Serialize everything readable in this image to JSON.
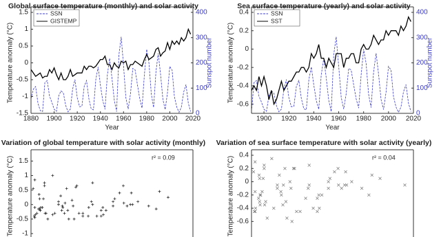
{
  "chart_data": [
    {
      "type": "line",
      "title": "Global surface temperature (monthly) and solar activity",
      "xlabel": "Year",
      "ylabel": "Temperature anomaly (°C)",
      "y2label": "Sunspot number",
      "legend": "upper left",
      "xlim": [
        1880,
        2020
      ],
      "xticks": [
        1880,
        1900,
        1920,
        1940,
        1960,
        1980,
        2000,
        2020
      ],
      "ylim": [
        -1.5,
        1.5
      ],
      "yticks": [
        -1.5,
        -1,
        -0.5,
        0,
        0.5,
        1,
        1.5
      ],
      "y2lim": [
        0,
        400
      ],
      "y2ticks": [
        0,
        100,
        200,
        300,
        400
      ],
      "y2color": "#3a3ac8",
      "x": [
        1880,
        1882,
        1884,
        1886,
        1888,
        1890,
        1892,
        1894,
        1896,
        1898,
        1900,
        1902,
        1904,
        1906,
        1908,
        1910,
        1912,
        1914,
        1916,
        1918,
        1920,
        1922,
        1924,
        1926,
        1928,
        1930,
        1932,
        1934,
        1936,
        1938,
        1940,
        1942,
        1944,
        1946,
        1948,
        1950,
        1952,
        1954,
        1956,
        1958,
        1960,
        1962,
        1964,
        1966,
        1968,
        1970,
        1972,
        1974,
        1976,
        1978,
        1980,
        1982,
        1984,
        1986,
        1988,
        1990,
        1992,
        1994,
        1996,
        1998,
        2000,
        2002,
        2004,
        2006,
        2008,
        2010,
        2012,
        2014,
        2016,
        2018
      ],
      "series": [
        {
          "name": "SSN",
          "color": "#3a3ac8",
          "axis": "y2",
          "linestyle": "dashed",
          "values": [
            57,
            96,
            106,
            40,
            11,
            7,
            122,
            130,
            68,
            44,
            16,
            8,
            70,
            89,
            80,
            31,
            6,
            17,
            96,
            134,
            62,
            26,
            28,
            107,
            130,
            59,
            18,
            14,
            133,
            184,
            112,
            51,
            16,
            152,
            218,
            139,
            51,
            7,
            232,
            303,
            188,
            63,
            17,
            78,
            178,
            172,
            114,
            58,
            21,
            152,
            254,
            198,
            76,
            23,
            164,
            238,
            155,
            55,
            15,
            83,
            186,
            171,
            66,
            25,
            4,
            25,
            85,
            114,
            40,
            7
          ]
        },
        {
          "name": "GISTEMP",
          "color": "#000000",
          "linestyle": "solid",
          "values": [
            -0.2,
            -0.3,
            -0.4,
            -0.35,
            -0.3,
            -0.45,
            -0.4,
            -0.4,
            -0.2,
            -0.3,
            -0.15,
            -0.35,
            -0.5,
            -0.3,
            -0.5,
            -0.5,
            -0.4,
            -0.2,
            -0.4,
            -0.35,
            -0.3,
            -0.3,
            -0.3,
            -0.1,
            -0.2,
            -0.1,
            -0.1,
            -0.15,
            -0.1,
            0.0,
            0.1,
            0.1,
            0.2,
            -0.05,
            -0.05,
            -0.2,
            0.0,
            -0.1,
            -0.15,
            0.05,
            0.0,
            0.05,
            -0.2,
            -0.05,
            -0.05,
            0.05,
            0.0,
            -0.05,
            -0.1,
            0.1,
            0.25,
            0.1,
            0.15,
            0.2,
            0.4,
            0.45,
            0.2,
            0.3,
            0.35,
            0.6,
            0.4,
            0.65,
            0.55,
            0.65,
            0.55,
            0.75,
            0.65,
            0.75,
            1.0,
            0.85
          ]
        }
      ]
    },
    {
      "type": "line",
      "title": "Sea surface temperature (yearly) and solar activity",
      "xlabel": "Year",
      "ylabel": "Temperature anomaly (°C)",
      "y2label": "Sunspot number",
      "legend": "upper left",
      "xlim": [
        1890,
        2020
      ],
      "xticks": [
        1900,
        1920,
        1940,
        1960,
        1980,
        2000,
        2020
      ],
      "ylim": [
        -0.7,
        0.4
      ],
      "yticks": [
        -0.6,
        -0.4,
        -0.2,
        0,
        0.2,
        0.4
      ],
      "y2lim": [
        0,
        400
      ],
      "y2ticks": [
        0,
        100,
        200,
        300,
        400
      ],
      "y2color": "#3a3ac8",
      "x": [
        1890,
        1892,
        1894,
        1896,
        1898,
        1900,
        1902,
        1904,
        1906,
        1908,
        1910,
        1912,
        1914,
        1916,
        1918,
        1920,
        1922,
        1924,
        1926,
        1928,
        1930,
        1932,
        1934,
        1936,
        1938,
        1940,
        1942,
        1944,
        1946,
        1948,
        1950,
        1952,
        1954,
        1956,
        1958,
        1960,
        1962,
        1964,
        1966,
        1968,
        1970,
        1972,
        1974,
        1976,
        1978,
        1980,
        1982,
        1984,
        1986,
        1988,
        1990,
        1992,
        1994,
        1996,
        1998,
        2000,
        2002,
        2004,
        2006,
        2008,
        2010,
        2012,
        2014,
        2016,
        2018
      ],
      "series": [
        {
          "name": "SSN",
          "color": "#3a3ac8",
          "axis": "y2",
          "linestyle": "dashed",
          "values": [
            7,
            122,
            130,
            68,
            44,
            16,
            8,
            70,
            89,
            80,
            31,
            6,
            17,
            96,
            134,
            62,
            26,
            28,
            107,
            130,
            59,
            18,
            14,
            133,
            184,
            112,
            51,
            16,
            152,
            218,
            139,
            51,
            7,
            232,
            303,
            188,
            63,
            17,
            78,
            178,
            172,
            114,
            58,
            21,
            152,
            254,
            198,
            76,
            23,
            164,
            238,
            155,
            55,
            15,
            83,
            186,
            171,
            66,
            25,
            4,
            25,
            85,
            114,
            40,
            7
          ]
        },
        {
          "name": "SST",
          "color": "#000000",
          "linestyle": "solid",
          "values": [
            -0.45,
            -0.4,
            -0.45,
            -0.3,
            -0.4,
            -0.3,
            -0.4,
            -0.55,
            -0.45,
            -0.6,
            -0.55,
            -0.45,
            -0.35,
            -0.45,
            -0.4,
            -0.35,
            -0.35,
            -0.3,
            -0.25,
            -0.25,
            -0.2,
            -0.2,
            -0.25,
            -0.2,
            -0.05,
            -0.1,
            -0.05,
            0.05,
            -0.1,
            -0.1,
            -0.2,
            -0.1,
            -0.15,
            -0.2,
            -0.05,
            -0.05,
            -0.05,
            -0.2,
            -0.1,
            -0.1,
            -0.05,
            -0.05,
            -0.15,
            -0.15,
            0.0,
            0.05,
            0.0,
            0.0,
            0.05,
            0.15,
            0.1,
            0.05,
            0.1,
            0.1,
            0.2,
            0.15,
            0.2,
            0.2,
            0.2,
            0.15,
            0.25,
            0.2,
            0.25,
            0.35,
            0.3
          ]
        }
      ]
    },
    {
      "type": "scatter",
      "title": "Variation of global temperature with solar activity (monthly)",
      "ylabel": "Temperature anomaly (°C)",
      "annotation": "r² = 0.09",
      "marker": "plus",
      "color": "#111111",
      "xlim": [
        0,
        300
      ],
      "ylim": [
        -1,
        1.7
      ],
      "yticks": [
        -1,
        -0.5,
        0,
        0.5,
        1,
        1.5
      ],
      "x": [
        57,
        96,
        106,
        40,
        11,
        7,
        122,
        130,
        68,
        44,
        16,
        8,
        70,
        89,
        80,
        31,
        6,
        17,
        96,
        134,
        62,
        26,
        28,
        107,
        130,
        59,
        18,
        14,
        133,
        184,
        112,
        51,
        16,
        152,
        218,
        139,
        51,
        7,
        232,
        303,
        188,
        63,
        17,
        78,
        178,
        172,
        114,
        58,
        21,
        152,
        254,
        198,
        76,
        23,
        164,
        238,
        155,
        55,
        15,
        83,
        186,
        171,
        66,
        25,
        4,
        25,
        85,
        114,
        40,
        7
      ],
      "values": [
        -0.2,
        -0.3,
        -0.4,
        -0.35,
        -0.3,
        -0.45,
        -0.4,
        -0.4,
        -0.2,
        -0.3,
        -0.15,
        -0.35,
        -0.5,
        -0.3,
        -0.5,
        -0.5,
        -0.4,
        -0.2,
        -0.4,
        -0.35,
        -0.3,
        -0.3,
        -0.3,
        -0.1,
        -0.2,
        -0.1,
        -0.1,
        -0.15,
        -0.1,
        0.0,
        0.1,
        0.1,
        0.2,
        -0.05,
        -0.05,
        -0.2,
        0.0,
        -0.1,
        -0.15,
        0.05,
        0.0,
        0.05,
        -0.2,
        -0.05,
        -0.05,
        0.05,
        0.0,
        -0.05,
        -0.1,
        0.1,
        0.25,
        0.1,
        0.15,
        0.2,
        0.4,
        0.45,
        0.2,
        0.3,
        0.35,
        0.6,
        0.4,
        0.65,
        0.55,
        0.65,
        0.55,
        0.75,
        0.65,
        0.75,
        1.0,
        0.85
      ]
    },
    {
      "type": "scatter",
      "title": "Variation of sea surface temperature with solar activity (yearly)",
      "ylabel": "Temperature anomaly (°C)",
      "annotation": "r² = 0.04",
      "marker": "cross",
      "color": "#777777",
      "xlim": [
        0,
        320
      ],
      "ylim": [
        -0.7,
        0.4
      ],
      "yticks": [
        -0.6,
        -0.4,
        -0.2,
        0,
        0.2,
        0.4
      ],
      "x": [
        7,
        122,
        130,
        68,
        44,
        16,
        8,
        70,
        89,
        80,
        31,
        6,
        17,
        96,
        134,
        62,
        26,
        28,
        107,
        130,
        59,
        18,
        14,
        133,
        184,
        112,
        51,
        16,
        152,
        218,
        139,
        51,
        7,
        232,
        303,
        188,
        63,
        17,
        78,
        178,
        172,
        114,
        58,
        21,
        152,
        254,
        198,
        76,
        23,
        164,
        238,
        155,
        55,
        15,
        83,
        186,
        171,
        66,
        25,
        4,
        25,
        85,
        114,
        40,
        7
      ],
      "values": [
        -0.45,
        -0.4,
        -0.45,
        -0.3,
        -0.4,
        -0.3,
        -0.4,
        -0.55,
        -0.45,
        -0.6,
        -0.55,
        -0.45,
        -0.35,
        -0.45,
        -0.4,
        -0.35,
        -0.35,
        -0.3,
        -0.25,
        -0.25,
        -0.2,
        -0.2,
        -0.25,
        -0.2,
        -0.05,
        -0.1,
        -0.05,
        0.05,
        -0.1,
        -0.1,
        -0.2,
        -0.1,
        -0.15,
        -0.2,
        -0.05,
        -0.05,
        -0.05,
        -0.2,
        -0.1,
        -0.1,
        -0.05,
        -0.05,
        -0.15,
        -0.15,
        0.0,
        0.05,
        0.0,
        0.0,
        0.05,
        0.15,
        0.1,
        0.05,
        0.1,
        0.1,
        0.2,
        0.15,
        0.2,
        0.2,
        0.2,
        0.15,
        0.25,
        0.2,
        0.25,
        0.35,
        0.3
      ]
    }
  ]
}
